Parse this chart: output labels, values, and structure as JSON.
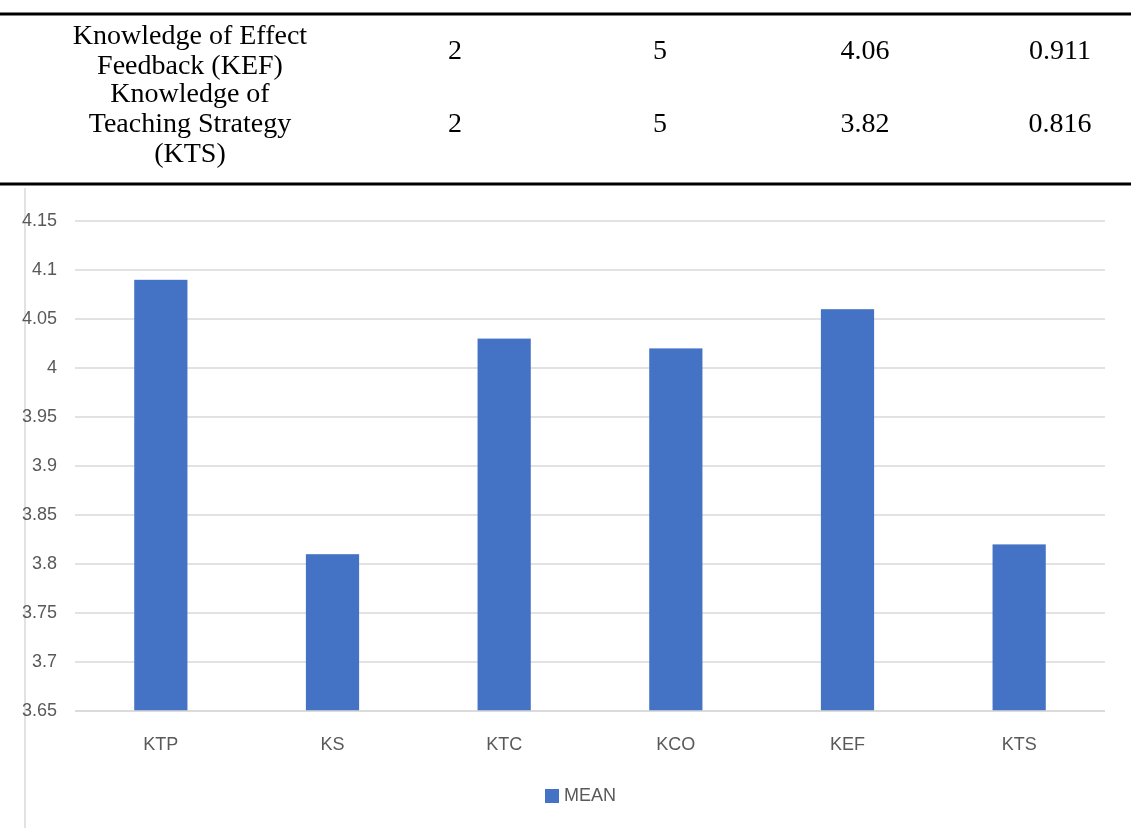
{
  "chart_data": [
    {
      "type": "other",
      "annotations": [
        "Knowledge of Effect Feedback (KEF)",
        "2",
        "5",
        "4.06",
        "0.911",
        "Knowledge of Teaching Strategy (KTS)",
        "2",
        "5",
        "3.82",
        "0.816"
      ]
    },
    {
      "type": "bar",
      "categories": [
        "KTP",
        "KS",
        "KTC",
        "KCO",
        "KEF",
        "KTS"
      ],
      "series": [
        {
          "name": "MEAN",
          "color": "#4472c4",
          "values": [
            4.09,
            3.81,
            4.03,
            4.02,
            4.06,
            3.82
          ]
        }
      ],
      "ylim": [
        3.65,
        4.15
      ],
      "yticks": [
        3.65,
        3.7,
        3.75,
        3.8,
        3.85,
        3.9,
        3.95,
        4,
        4.05,
        4.1,
        4.15
      ],
      "grid": "y",
      "legend": "bottom"
    }
  ]
}
